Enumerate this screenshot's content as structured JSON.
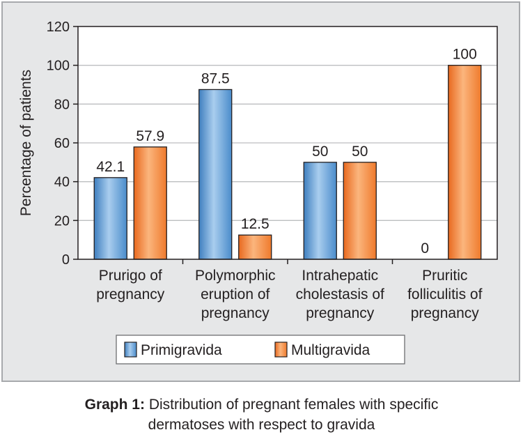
{
  "chart_data": {
    "type": "bar",
    "categories": [
      [
        "Prurigo of",
        "pregnancy"
      ],
      [
        "Polymorphic",
        "eruption of",
        "pregnancy"
      ],
      [
        "Intrahepatic",
        "cholestasis of",
        "pregnancy"
      ],
      [
        "Pruritic",
        "folliculitis of",
        "pregnancy"
      ]
    ],
    "series": [
      {
        "name": "Primigravida",
        "values": [
          42.1,
          87.5,
          50,
          0
        ],
        "labels": [
          "42.1",
          "87.5",
          "50",
          "0"
        ],
        "color": "#5b9bd5"
      },
      {
        "name": "Multigravida",
        "values": [
          57.9,
          12.5,
          50,
          100
        ],
        "labels": [
          "57.9",
          "12.5",
          "50",
          "100"
        ],
        "color": "#f58232"
      }
    ],
    "ylabel": "Percentage of patients",
    "xlabel": "",
    "ylim": [
      0,
      120
    ],
    "yticks": [
      0,
      20,
      40,
      60,
      80,
      100,
      120
    ],
    "grid": true,
    "legend_position": "bottom"
  },
  "caption": {
    "label": "Graph 1:",
    "line1": " Distribution of pregnant females with specific",
    "line2": "dermatoses with respect to gravida"
  }
}
